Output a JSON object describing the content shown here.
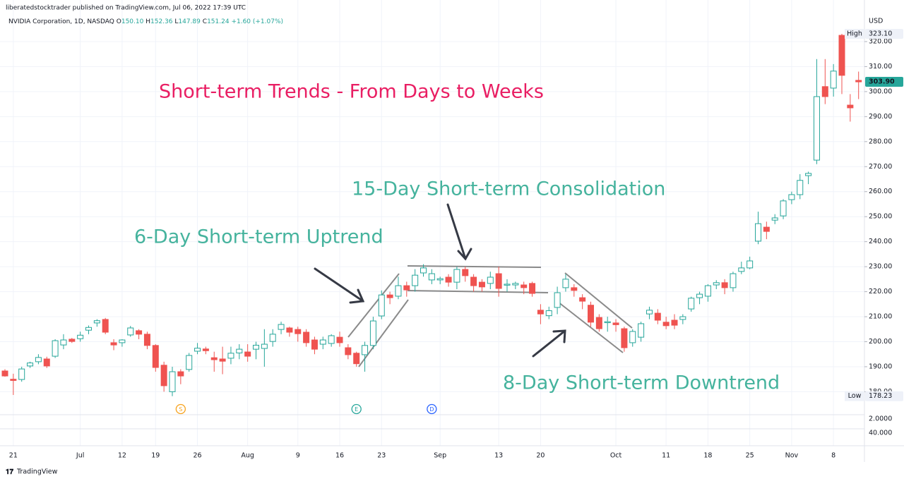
{
  "header": {
    "publisher": "liberatedstocktrader published on TradingView.com, Jul 06, 2022 17:39 UTC",
    "legend": {
      "symbol": "NVIDIA Corporation, 1D, NASDAQ",
      "o_label": "O",
      "o": "150.10",
      "h_label": "H",
      "h": "152.36",
      "l_label": "L",
      "l": "147.89",
      "c_label": "C",
      "c": "151.24",
      "change": "+1.60 (+1.07%)"
    },
    "currency": "USD"
  },
  "chart_data": {
    "type": "candlestick",
    "categories": [
      null,
      "21",
      null,
      null,
      null,
      null,
      null,
      null,
      null,
      "Jul",
      null,
      null,
      null,
      null,
      "12",
      null,
      null,
      null,
      "19",
      null,
      null,
      null,
      null,
      "26",
      null,
      null,
      null,
      null,
      null,
      "Aug",
      null,
      null,
      null,
      null,
      null,
      "9",
      null,
      null,
      null,
      null,
      "16",
      null,
      null,
      null,
      null,
      "23",
      null,
      null,
      null,
      null,
      null,
      null,
      "Sep",
      null,
      null,
      null,
      null,
      null,
      null,
      "13",
      null,
      null,
      null,
      null,
      "20",
      null,
      null,
      null,
      null,
      null,
      null,
      null,
      null,
      "Oct",
      null,
      null,
      null,
      null,
      null,
      "11",
      null,
      null,
      null,
      null,
      "18",
      null,
      null,
      null,
      null,
      "25",
      null,
      null,
      null,
      null,
      "Nov",
      null,
      null,
      null,
      null,
      "8",
      null,
      null,
      null
    ],
    "open": [
      188.3,
      185,
      184.9,
      190.3,
      192,
      193.1,
      194.2,
      198.7,
      201,
      201.2,
      204.6,
      207.5,
      208.9,
      199.6,
      199.6,
      202.7,
      204.4,
      203,
      198.5,
      190.6,
      180,
      188,
      188.9,
      196.2,
      197.1,
      193.6,
      193.1,
      193.4,
      195.5,
      195.9,
      197,
      197.3,
      200.1,
      204.9,
      205.5,
      204.9,
      203.8,
      200.7,
      199,
      199.3,
      201.8,
      197.6,
      195.4,
      194.8,
      198.5,
      210.3,
      218.7,
      218.2,
      222.4,
      222.4,
      227.5,
      224.7,
      224.7,
      225.8,
      223.8,
      228.9,
      225.8,
      223.8,
      223.3,
      227.2,
      222.6,
      222.7,
      222.7,
      223.3,
      212.6,
      210.4,
      213.7,
      221.6,
      221.6,
      217.6,
      214.6,
      209.7,
      207.6,
      207.5,
      205.2,
      199.6,
      201.8,
      211.1,
      211.4,
      207.8,
      208.6,
      208.9,
      213.1,
      217.6,
      218.2,
      222.7,
      223.6,
      221.6,
      228.1,
      229.5,
      240.2,
      245.8,
      248.6,
      250.3,
      256.8,
      258.8,
      266.4,
      272.6,
      302,
      301.4,
      322.5,
      294.6,
      304.5
    ],
    "high": [
      189,
      187.2,
      190,
      192,
      195,
      194,
      201,
      203,
      201.5,
      204,
      206.5,
      209,
      209.5,
      201,
      201,
      206.3,
      205,
      204,
      199,
      192,
      190,
      189,
      195.5,
      199.5,
      198,
      196,
      198,
      198,
      199,
      199,
      200,
      205,
      205,
      208,
      206,
      206,
      205,
      202,
      202,
      203,
      204,
      199,
      196,
      200,
      210,
      220.5,
      220,
      226,
      224,
      229,
      231,
      229,
      226,
      227,
      230,
      230,
      227,
      225,
      228,
      230,
      225,
      224,
      224,
      224,
      215,
      214,
      222,
      227,
      223,
      219,
      216,
      211,
      210,
      209,
      206,
      205,
      208,
      214,
      213,
      210,
      211,
      211,
      218,
      220,
      223,
      224.6,
      225,
      228,
      232,
      234,
      252,
      248,
      251,
      257,
      260,
      267,
      268,
      313,
      313,
      311,
      323.1,
      299,
      308
    ],
    "low": [
      186,
      178.7,
      184,
      189.5,
      191,
      189.5,
      193.5,
      197,
      199.5,
      200,
      203,
      206,
      203,
      196.6,
      198,
      202,
      201,
      197,
      188,
      180,
      178.23,
      183,
      188,
      195,
      195,
      188,
      187,
      191,
      193,
      192,
      193,
      190,
      198,
      203,
      202,
      200,
      198,
      195,
      197,
      198,
      198,
      193,
      190,
      188,
      197,
      209,
      215,
      217,
      218,
      220,
      226,
      223,
      223,
      222,
      221,
      224,
      220,
      220,
      221,
      218,
      220,
      221,
      219,
      218,
      207,
      209,
      211,
      220,
      218,
      213,
      206,
      204,
      204,
      204,
      196,
      198,
      200,
      209,
      207,
      205,
      205,
      207,
      212,
      215,
      216,
      221,
      219,
      220,
      227,
      229,
      239,
      241,
      247,
      249,
      255,
      257,
      263,
      271,
      295,
      298,
      299,
      288,
      297
    ],
    "close": [
      186.3,
      184.5,
      189.1,
      191.5,
      193.7,
      190.3,
      200.4,
      200.7,
      200.1,
      202.6,
      205.7,
      208.4,
      203.8,
      198.7,
      200.7,
      205.5,
      203,
      198.5,
      189.7,
      182.4,
      188,
      186.3,
      194.5,
      197.4,
      196.4,
      192.8,
      192.2,
      195.4,
      197,
      194.2,
      198.6,
      199,
      203,
      206.9,
      203.8,
      203.2,
      199.6,
      197,
      200.7,
      202.4,
      199.6,
      194.8,
      191.2,
      198.5,
      208.3,
      218.7,
      217.6,
      222.4,
      220.7,
      226.6,
      229.5,
      227.2,
      225.2,
      223.8,
      228.9,
      226.4,
      222.4,
      221.9,
      225.8,
      221.3,
      223,
      223.3,
      221.6,
      219.3,
      211.1,
      212.4,
      219.6,
      225,
      220.5,
      216.2,
      207.8,
      205.2,
      208,
      206.8,
      197.6,
      204.1,
      207.2,
      212.6,
      208.6,
      206.4,
      206.6,
      210,
      217.4,
      219,
      222.4,
      223.6,
      221.6,
      227.2,
      229.5,
      232.3,
      247.2,
      244.1,
      249.5,
      256.3,
      258.8,
      264.5,
      267.3,
      298,
      298,
      308.2,
      306.5,
      293.5,
      303.9
    ],
    "up_color": "#26a69a",
    "down_color": "#ef5350",
    "ylim": [
      176,
      330
    ],
    "yticks": [
      {
        "value": 180,
        "label": "180.00"
      },
      {
        "value": 190,
        "label": "190.00"
      },
      {
        "value": 200,
        "label": "200.00"
      },
      {
        "value": 210,
        "label": "210.00"
      },
      {
        "value": 220,
        "label": "220.00"
      },
      {
        "value": 230,
        "label": "230.00"
      },
      {
        "value": 240,
        "label": "240.00"
      },
      {
        "value": 250,
        "label": "250.00"
      },
      {
        "value": 260,
        "label": "260.00"
      },
      {
        "value": 270,
        "label": "270.00"
      },
      {
        "value": 280,
        "label": "280.00"
      },
      {
        "value": 290,
        "label": "290.00"
      },
      {
        "value": 300,
        "label": "300.00"
      },
      {
        "value": 310,
        "label": "310.00"
      },
      {
        "value": 320,
        "label": "320.00"
      }
    ],
    "grid": true,
    "price_markers": [
      {
        "name": "High",
        "value": 323.1,
        "value_label": "323.10"
      },
      {
        "name": "Low",
        "value": 178.23,
        "value_label": "178.23"
      },
      {
        "value": 303.9,
        "value_label": "303.90",
        "color": "#26a69a"
      }
    ],
    "events": [
      {
        "label": "S",
        "index": 21,
        "color": "#f7a21b"
      },
      {
        "label": "E",
        "index": 42,
        "color": "#26a69a"
      },
      {
        "label": "D",
        "index": 51,
        "color": "#2962ff"
      }
    ],
    "indicator_labels": [
      "2.0000",
      "40.000"
    ],
    "annotations": [
      {
        "text": "Short-term Trends - From Days to Weeks",
        "color": "#e91e63"
      },
      {
        "text": "15-Day Short-term Consolidation",
        "color": "#45b39d"
      },
      {
        "text": "6-Day Short-term Uptrend",
        "color": "#45b39d"
      },
      {
        "text": "8-Day Short-term Downtrend",
        "color": "#45b39d"
      }
    ]
  },
  "footer": {
    "brand": "TradingView"
  }
}
